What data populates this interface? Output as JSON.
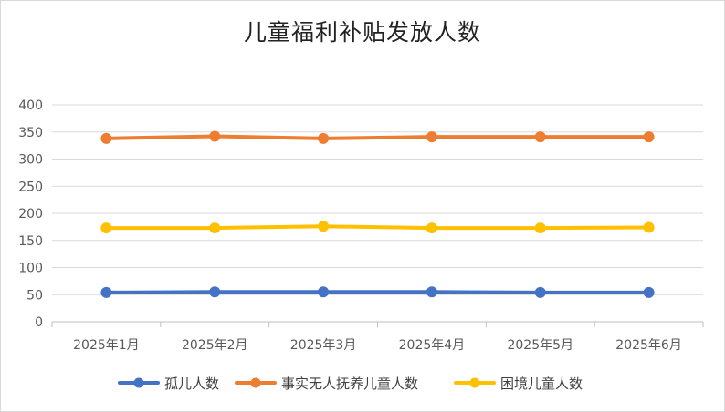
{
  "chart_data": {
    "type": "line",
    "title": "儿童福利补贴发放人数",
    "categories": [
      "2025年1月",
      "2025年2月",
      "2025年3月",
      "2025年4月",
      "2025年5月",
      "2025年6月"
    ],
    "ylim": [
      0,
      400
    ],
    "yticks": [
      0,
      50,
      100,
      150,
      200,
      250,
      300,
      350,
      400
    ],
    "grid": true,
    "legend_position": "bottom",
    "series": [
      {
        "name": "孤儿人数",
        "color": "#4472C4",
        "values": [
          54,
          55,
          55,
          55,
          54,
          54
        ]
      },
      {
        "name": "事实无人抚养儿童人数",
        "color": "#ED7D31",
        "values": [
          338,
          342,
          338,
          341,
          341,
          341
        ]
      },
      {
        "name": "困境儿童人数",
        "color": "#FFC000",
        "values": [
          173,
          173,
          176,
          173,
          173,
          174
        ]
      }
    ]
  }
}
